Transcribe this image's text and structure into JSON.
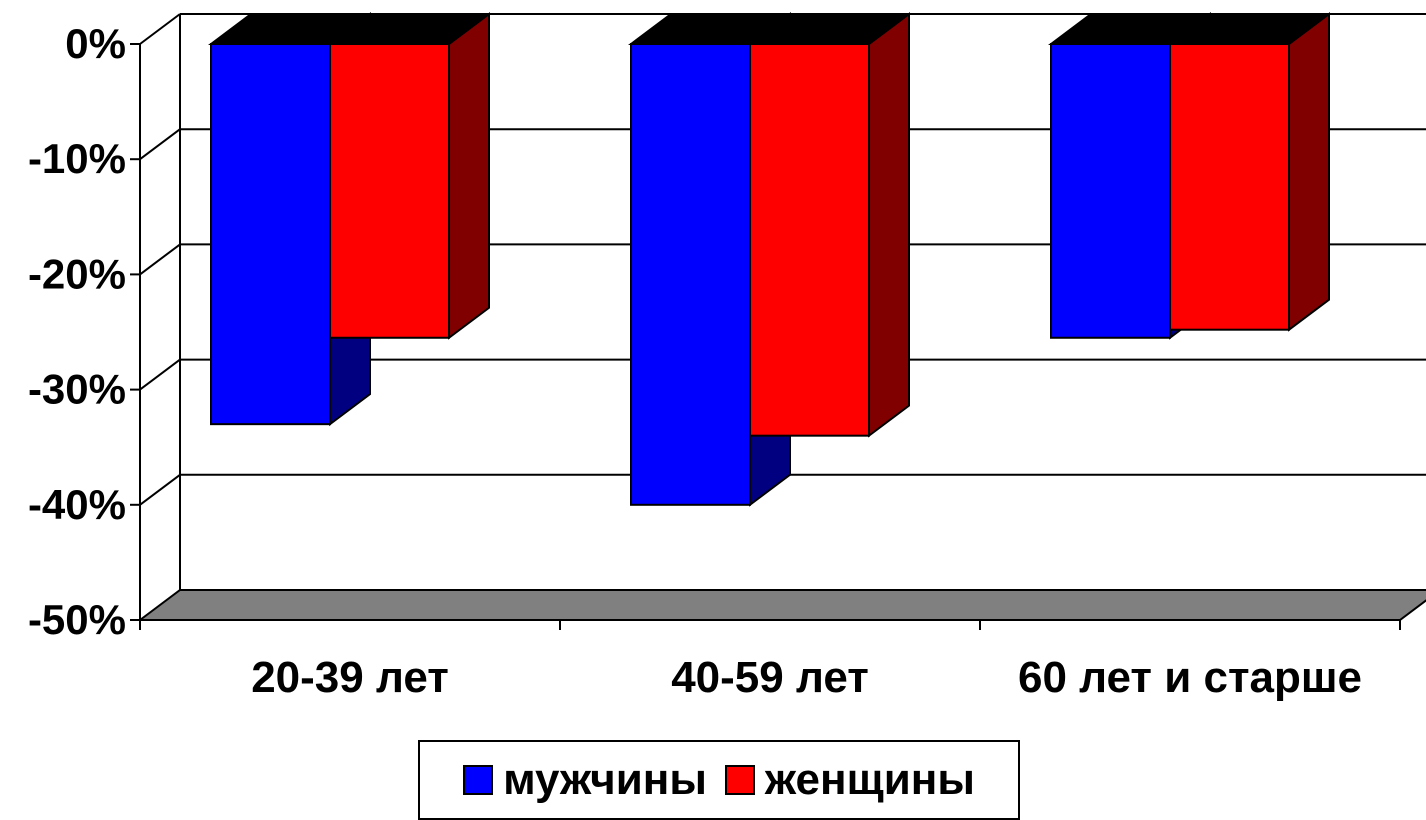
{
  "chart_data": {
    "type": "bar",
    "title": "",
    "xlabel": "",
    "ylabel": "",
    "categories": [
      "20-39 лет",
      "40-59 лет",
      "60 лет и старше"
    ],
    "series": [
      {
        "name": "мужчины",
        "values": [
          -33,
          -40,
          -25.5
        ],
        "color": "#0000FF",
        "side_color": "#000080"
      },
      {
        "name": "женщины",
        "values": [
          -25.5,
          -34,
          -24.8
        ],
        "color": "#FF0000",
        "side_color": "#800000"
      }
    ],
    "ylim": [
      -50,
      0
    ],
    "yticks": [
      0,
      -10,
      -20,
      -30,
      -40,
      -50
    ],
    "ytick_labels": [
      "0%",
      "-10%",
      "-20%",
      "-30%",
      "-40%",
      "-50%"
    ],
    "grid": true,
    "style": "3d-clustered-column",
    "floor_color": "#808080",
    "bar_top_color": "#000000",
    "legend_position": "bottom"
  }
}
